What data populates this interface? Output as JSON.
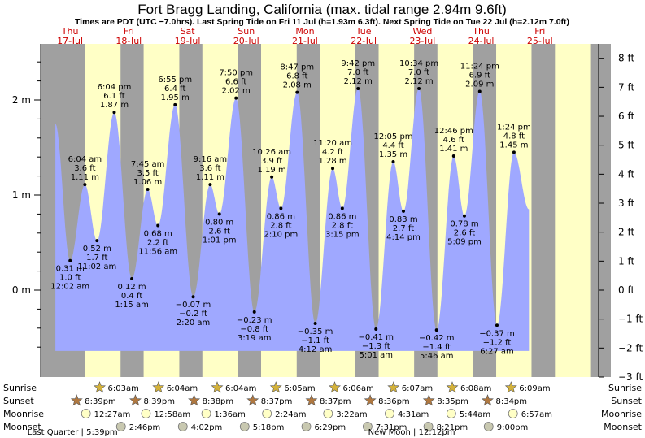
{
  "title": "Fort Bragg Landing, California (max. tidal range 2.94m 9.6ft)",
  "subtitle": "Times are PDT (UTC −7.0hrs). Last Spring Tide on Fri 11 Jul (h=1.93m 6.3ft). Next Spring Tide on Tue 22 Jul (h=2.12m 7.0ft)",
  "colors": {
    "day": "#ffffc6",
    "night": "#a0a0a0",
    "water": "#9fa8ff",
    "weekday": "#cc0000",
    "sun": "#d4b23a",
    "sunset": "#b07840",
    "moonrise": "#ffffc6",
    "moonset": "#c8c8b0"
  },
  "chart_data": {
    "type": "area",
    "y_left_unit": "m",
    "y_right_unit": "ft",
    "y_left_ticks": [
      "0 m",
      "1 m",
      "2 m"
    ],
    "y_left_tick_values": [
      0,
      1,
      2
    ],
    "y_right_ticks": [
      "−3 ft",
      "−2 ft",
      "−1 ft",
      "0 ft",
      "1 ft",
      "2 ft",
      "3 ft",
      "4 ft",
      "5 ft",
      "6 ft",
      "7 ft",
      "8 ft"
    ],
    "y_right_tick_values": [
      -3,
      -2,
      -1,
      0,
      1,
      2,
      3,
      4,
      5,
      6,
      7,
      8
    ],
    "days": [
      {
        "weekday": "Thu",
        "date": "17-Jul"
      },
      {
        "weekday": "Fri",
        "date": "18-Jul"
      },
      {
        "weekday": "Sat",
        "date": "19-Jul"
      },
      {
        "weekday": "Sun",
        "date": "20-Jul"
      },
      {
        "weekday": "Mon",
        "date": "21-Jul"
      },
      {
        "weekday": "Tue",
        "date": "22-Jul"
      },
      {
        "weekday": "Wed",
        "date": "23-Jul"
      },
      {
        "weekday": "Thu",
        "date": "24-Jul"
      },
      {
        "weekday": "Fri",
        "date": "25-Jul"
      }
    ],
    "night_bands_hours": [
      [
        -12.0,
        6.05
      ],
      [
        20.65,
        30.07
      ],
      [
        44.65,
        54.07
      ],
      [
        68.63,
        78.07
      ],
      [
        92.62,
        102.08
      ],
      [
        116.62,
        126.1
      ],
      [
        140.6,
        150.12
      ],
      [
        164.58,
        174.13
      ],
      [
        188.57,
        198.15
      ],
      [
        212.55,
        216.0
      ]
    ],
    "tides": [
      {
        "t": 0.03,
        "m": "0.31 m",
        "ft": "1.0 ft",
        "time": "12:02 am",
        "h": 0.31,
        "type": "low"
      },
      {
        "t": 6.07,
        "m": "1.11 m",
        "ft": "3.6 ft",
        "time": "6:04 am",
        "h": 1.11,
        "type": "high"
      },
      {
        "t": 11.03,
        "m": "0.52 m",
        "ft": "1.7 ft",
        "time": "11:02 am",
        "h": 0.52,
        "type": "low"
      },
      {
        "t": 18.07,
        "m": "1.87 m",
        "ft": "6.1 ft",
        "time": "6:04 pm",
        "h": 1.87,
        "type": "high"
      },
      {
        "t": 25.25,
        "m": "0.12 m",
        "ft": "0.4 ft",
        "time": "1:15 am",
        "h": 0.12,
        "type": "low"
      },
      {
        "t": 31.75,
        "m": "1.06 m",
        "ft": "3.5 ft",
        "time": "7:45 am",
        "h": 1.06,
        "type": "high"
      },
      {
        "t": 35.93,
        "m": "0.68 m",
        "ft": "2.2 ft",
        "time": "11:56 am",
        "h": 0.68,
        "type": "low"
      },
      {
        "t": 42.92,
        "m": "1.95 m",
        "ft": "6.4 ft",
        "time": "6:55 pm",
        "h": 1.95,
        "type": "high"
      },
      {
        "t": 50.33,
        "m": "−0.07 m",
        "ft": "−0.2 ft",
        "time": "2:20 am",
        "h": -0.07,
        "type": "low"
      },
      {
        "t": 57.27,
        "m": "1.11 m",
        "ft": "3.6 ft",
        "time": "9:16 am",
        "h": 1.11,
        "type": "high"
      },
      {
        "t": 61.02,
        "m": "0.80 m",
        "ft": "2.6 ft",
        "time": "1:01 pm",
        "h": 0.8,
        "type": "low"
      },
      {
        "t": 67.83,
        "m": "2.02 m",
        "ft": "6.6 ft",
        "time": "7:50 pm",
        "h": 2.02,
        "type": "high"
      },
      {
        "t": 75.32,
        "m": "−0.23 m",
        "ft": "−0.8 ft",
        "time": "3:19 am",
        "h": -0.23,
        "type": "low"
      },
      {
        "t": 82.43,
        "m": "1.19 m",
        "ft": "3.9 ft",
        "time": "10:26 am",
        "h": 1.19,
        "type": "high"
      },
      {
        "t": 86.17,
        "m": "0.86 m",
        "ft": "2.8 ft",
        "time": "2:10 pm",
        "h": 0.86,
        "type": "low"
      },
      {
        "t": 92.78,
        "m": "2.08 m",
        "ft": "6.8 ft",
        "time": "8:47 pm",
        "h": 2.08,
        "type": "high"
      },
      {
        "t": 100.2,
        "m": "−0.35 m",
        "ft": "−1.1 ft",
        "time": "4:12 am",
        "h": -0.35,
        "type": "low"
      },
      {
        "t": 107.33,
        "m": "1.28 m",
        "ft": "4.2 ft",
        "time": "11:20 am",
        "h": 1.28,
        "type": "high"
      },
      {
        "t": 111.25,
        "m": "0.86 m",
        "ft": "2.8 ft",
        "time": "3:15 pm",
        "h": 0.86,
        "type": "low"
      },
      {
        "t": 117.7,
        "m": "2.12 m",
        "ft": "7.0 ft",
        "time": "9:42 pm",
        "h": 2.12,
        "type": "high"
      },
      {
        "t": 125.02,
        "m": "−0.41 m",
        "ft": "−1.3 ft",
        "time": "5:01 am",
        "h": -0.41,
        "type": "low"
      },
      {
        "t": 132.08,
        "m": "1.35 m",
        "ft": "4.4 ft",
        "time": "12:05 pm",
        "h": 1.35,
        "type": "high"
      },
      {
        "t": 136.23,
        "m": "0.83 m",
        "ft": "2.7 ft",
        "time": "4:14 pm",
        "h": 0.83,
        "type": "low"
      },
      {
        "t": 142.57,
        "m": "2.12 m",
        "ft": "7.0 ft",
        "time": "10:34 pm",
        "h": 2.12,
        "type": "high"
      },
      {
        "t": 149.77,
        "m": "−0.42 m",
        "ft": "−1.4 ft",
        "time": "5:46 am",
        "h": -0.42,
        "type": "low"
      },
      {
        "t": 156.77,
        "m": "1.41 m",
        "ft": "4.6 ft",
        "time": "12:46 pm",
        "h": 1.41,
        "type": "high"
      },
      {
        "t": 161.15,
        "m": "0.78 m",
        "ft": "2.6 ft",
        "time": "5:09 pm",
        "h": 0.78,
        "type": "low"
      },
      {
        "t": 167.4,
        "m": "2.09 m",
        "ft": "6.9 ft",
        "time": "11:24 pm",
        "h": 2.09,
        "type": "high"
      },
      {
        "t": 174.45,
        "m": "−0.37 m",
        "ft": "−1.2 ft",
        "time": "6:27 am",
        "h": -0.37,
        "type": "low"
      },
      {
        "t": 181.4,
        "m": "1.45 m",
        "ft": "4.8 ft",
        "time": "1:24 pm",
        "h": 1.45,
        "type": "high"
      }
    ],
    "curve_start": {
      "t": -6.0,
      "h": 1.75
    },
    "curve_end": {
      "t": 187.5,
      "h": 0.85
    },
    "astro_rows": {
      "labels": [
        "Sunrise",
        "Sunset",
        "Moonrise",
        "Moonset"
      ],
      "sunrise": [
        {
          "t": 30.05,
          "time": "6:03am"
        },
        {
          "t": 54.07,
          "time": "6:04am"
        },
        {
          "t": 78.07,
          "time": "6:04am"
        },
        {
          "t": 102.08,
          "time": "6:05am"
        },
        {
          "t": 126.1,
          "time": "6:06am"
        },
        {
          "t": 150.12,
          "time": "6:07am"
        },
        {
          "t": 174.13,
          "time": "6:08am"
        },
        {
          "t": 198.15,
          "time": "6:09am"
        }
      ],
      "sunset": [
        {
          "t": 20.65,
          "time": "8:39pm"
        },
        {
          "t": 44.65,
          "time": "8:39pm"
        },
        {
          "t": 68.63,
          "time": "8:38pm"
        },
        {
          "t": 92.62,
          "time": "8:37pm"
        },
        {
          "t": 116.62,
          "time": "8:37pm"
        },
        {
          "t": 140.6,
          "time": "8:36pm"
        },
        {
          "t": 164.58,
          "time": "8:35pm"
        },
        {
          "t": 188.57,
          "time": "8:34pm"
        }
      ],
      "moonrise": [
        {
          "t": 24.45,
          "time": "12:27am"
        },
        {
          "t": 48.97,
          "time": "12:58am"
        },
        {
          "t": 73.6,
          "time": "1:36am"
        },
        {
          "t": 98.4,
          "time": "2:24am"
        },
        {
          "t": 123.37,
          "time": "3:22am"
        },
        {
          "t": 148.52,
          "time": "4:31am"
        },
        {
          "t": 173.73,
          "time": "5:44am"
        },
        {
          "t": 198.95,
          "time": "6:57am"
        }
      ],
      "moonset": [
        {
          "t": 38.77,
          "time": "2:46pm"
        },
        {
          "t": 64.03,
          "time": "4:02pm"
        },
        {
          "t": 89.3,
          "time": "5:18pm"
        },
        {
          "t": 114.48,
          "time": "6:29pm"
        },
        {
          "t": 139.52,
          "time": "7:31pm"
        },
        {
          "t": 164.35,
          "time": "8:21pm"
        },
        {
          "t": 189.0,
          "time": "9:00pm"
        }
      ]
    },
    "moon_phases": [
      {
        "text": "Last Quarter | 5:39pm",
        "t": 17.65
      },
      {
        "text": "New Moon | 12:12pm",
        "t": 156.2
      }
    ]
  }
}
